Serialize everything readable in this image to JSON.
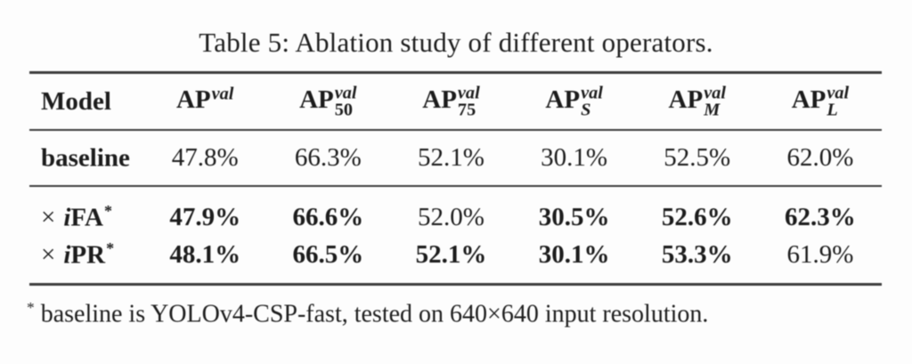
{
  "title": "Table 5: Ablation study of different operators.",
  "table": {
    "header": {
      "model": "Model",
      "ap_columns": [
        {
          "base": "AP",
          "sup": "val",
          "sub": ""
        },
        {
          "base": "AP",
          "sup": "val",
          "sub": "50"
        },
        {
          "base": "AP",
          "sup": "val",
          "sub": "75"
        },
        {
          "base": "AP",
          "sup": "val",
          "sub": "S"
        },
        {
          "base": "AP",
          "sup": "val",
          "sub": "M"
        },
        {
          "base": "AP",
          "sup": "val",
          "sub": "L"
        }
      ]
    },
    "rows": [
      {
        "model": {
          "prefix": "",
          "italic": "",
          "name": "baseline",
          "sup": ""
        },
        "values": [
          {
            "text": "47.8%",
            "bold": false
          },
          {
            "text": "66.3%",
            "bold": false
          },
          {
            "text": "52.1%",
            "bold": false
          },
          {
            "text": "30.1%",
            "bold": false
          },
          {
            "text": "52.5%",
            "bold": false
          },
          {
            "text": "62.0%",
            "bold": false
          }
        ]
      },
      {
        "model": {
          "prefix": "×",
          "italic": "i",
          "name": "FA",
          "sup": "*"
        },
        "values": [
          {
            "text": "47.9%",
            "bold": true
          },
          {
            "text": "66.6%",
            "bold": true
          },
          {
            "text": "52.0%",
            "bold": false
          },
          {
            "text": "30.5%",
            "bold": true
          },
          {
            "text": "52.6%",
            "bold": true
          },
          {
            "text": "62.3%",
            "bold": true
          }
        ]
      },
      {
        "model": {
          "prefix": "×",
          "italic": "i",
          "name": "PR",
          "sup": "*"
        },
        "values": [
          {
            "text": "48.1%",
            "bold": true
          },
          {
            "text": "66.5%",
            "bold": true
          },
          {
            "text": "52.1%",
            "bold": true
          },
          {
            "text": "30.1%",
            "bold": true
          },
          {
            "text": "53.3%",
            "bold": true
          },
          {
            "text": "61.9%",
            "bold": false
          }
        ]
      }
    ]
  },
  "footnote": {
    "marker": "*",
    "text": "baseline is YOLOv4-CSP-fast, tested on 640×640 input resolution."
  }
}
